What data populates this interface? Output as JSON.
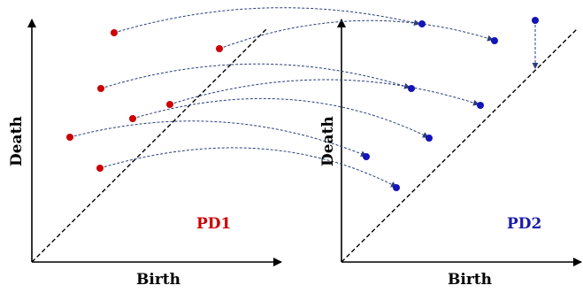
{
  "colors": {
    "pd1": "#cc0000",
    "pd2": "#1414b8",
    "axis": "#000000",
    "matching": "#2a3f7a"
  },
  "pd1": {
    "title": "PD1",
    "x_label": "Birth",
    "y_label": "Death"
  },
  "pd2": {
    "title": "PD2",
    "x_label": "Birth",
    "y_label": "Death"
  }
}
